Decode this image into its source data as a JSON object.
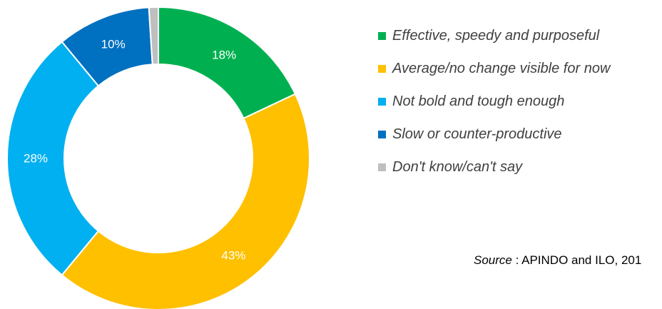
{
  "chart_data": {
    "type": "pie",
    "variant": "donut",
    "title": "",
    "slices": [
      {
        "label": "Effective, speedy and purposeful",
        "value": 18,
        "display": "18%",
        "color": "#00B050"
      },
      {
        "label": "Average/no change visible for now",
        "value": 43,
        "display": "43%",
        "color": "#FFC000"
      },
      {
        "label": "Not bold and tough enough",
        "value": 28,
        "display": "28%",
        "color": "#00B0F0"
      },
      {
        "label": "Slow or counter-productive",
        "value": 10,
        "display": "10%",
        "color": "#0070C0"
      },
      {
        "label": "Don't know/can't say",
        "value": 1,
        "display": "",
        "color": "#BFBFBF"
      }
    ],
    "legend_position": "right"
  },
  "source": {
    "label": "Source",
    "separator": " : ",
    "text": "APINDO and ILO, 201"
  }
}
